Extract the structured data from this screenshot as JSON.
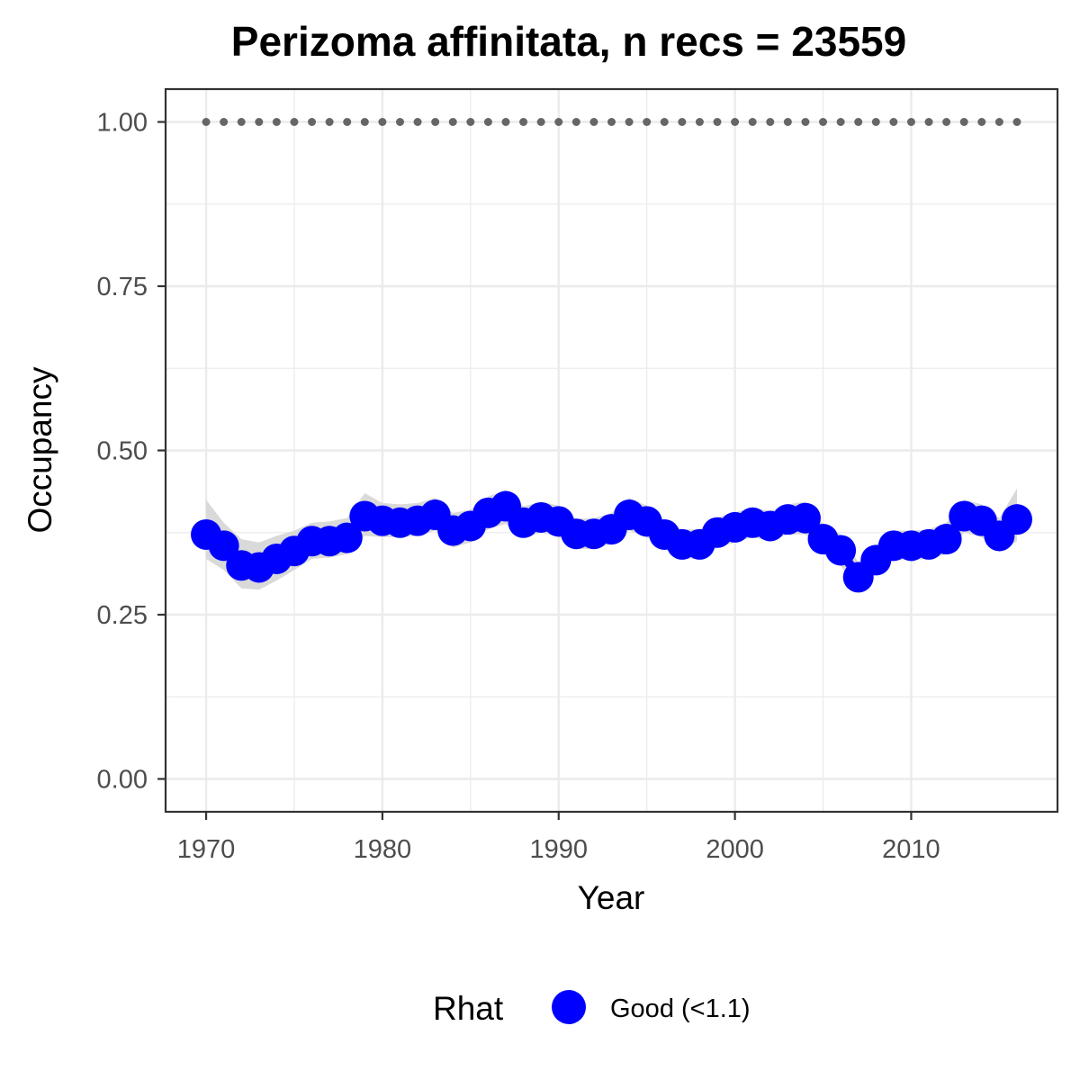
{
  "chart_data": {
    "type": "line",
    "title": "Perizoma affinitata, n recs = 23559",
    "xlabel": "Year",
    "ylabel": "Occupancy",
    "xlim": [
      1967.7,
      2018.3
    ],
    "ylim": [
      -0.05,
      1.05
    ],
    "x_ticks": [
      1970,
      1980,
      1990,
      2000,
      2010
    ],
    "x_tick_labels": [
      "1970",
      "1980",
      "1990",
      "2000",
      "2010"
    ],
    "y_ticks": [
      0,
      0.25,
      0.5,
      0.75,
      1.0
    ],
    "y_tick_labels": [
      "0.00",
      "0.25",
      "0.50",
      "0.75",
      "1.00"
    ],
    "grid": true,
    "legend": {
      "position": "bottom",
      "title": "Rhat",
      "entries": [
        {
          "label": "Good (<1.1)",
          "color": "#0000ff"
        }
      ]
    },
    "colors": {
      "points": "#0000ff",
      "ribbon": "#d9d9d9",
      "reference": "#666666",
      "grid": "#ebebeb",
      "border": "#333333"
    },
    "reference_line": {
      "y": 1.0,
      "style": "dotted"
    },
    "x": [
      1970,
      1971,
      1972,
      1973,
      1974,
      1975,
      1976,
      1977,
      1978,
      1979,
      1980,
      1981,
      1982,
      1983,
      1984,
      1985,
      1986,
      1987,
      1988,
      1989,
      1990,
      1991,
      1992,
      1993,
      1994,
      1995,
      1996,
      1997,
      1998,
      1999,
      2000,
      2001,
      2002,
      2003,
      2004,
      2005,
      2006,
      2007,
      2008,
      2009,
      2010,
      2011,
      2012,
      2013,
      2014,
      2015,
      2016
    ],
    "series": [
      {
        "name": "Good (<1.1)",
        "values": [
          0.372,
          0.355,
          0.325,
          0.322,
          0.335,
          0.347,
          0.362,
          0.362,
          0.367,
          0.4,
          0.393,
          0.39,
          0.393,
          0.402,
          0.378,
          0.385,
          0.405,
          0.415,
          0.39,
          0.398,
          0.392,
          0.373,
          0.373,
          0.38,
          0.402,
          0.392,
          0.372,
          0.357,
          0.357,
          0.375,
          0.383,
          0.39,
          0.385,
          0.395,
          0.397,
          0.365,
          0.348,
          0.307,
          0.333,
          0.355,
          0.355,
          0.357,
          0.365,
          0.4,
          0.393,
          0.37,
          0.395
        ],
        "lower": [
          0.335,
          0.318,
          0.29,
          0.288,
          0.302,
          0.318,
          0.335,
          0.337,
          0.342,
          0.37,
          0.368,
          0.368,
          0.37,
          0.378,
          0.352,
          0.36,
          0.38,
          0.388,
          0.367,
          0.375,
          0.368,
          0.35,
          0.35,
          0.358,
          0.378,
          0.368,
          0.35,
          0.335,
          0.335,
          0.352,
          0.36,
          0.368,
          0.362,
          0.372,
          0.372,
          0.342,
          0.325,
          0.285,
          0.312,
          0.333,
          0.333,
          0.335,
          0.342,
          0.375,
          0.368,
          0.345,
          0.362
        ],
        "upper": [
          0.425,
          0.39,
          0.365,
          0.36,
          0.37,
          0.378,
          0.39,
          0.392,
          0.397,
          0.435,
          0.42,
          0.418,
          0.42,
          0.428,
          0.405,
          0.41,
          0.43,
          0.44,
          0.415,
          0.422,
          0.416,
          0.396,
          0.397,
          0.405,
          0.428,
          0.416,
          0.395,
          0.38,
          0.38,
          0.398,
          0.406,
          0.413,
          0.408,
          0.418,
          0.422,
          0.388,
          0.372,
          0.33,
          0.356,
          0.378,
          0.378,
          0.38,
          0.39,
          0.425,
          0.418,
          0.397,
          0.442
        ]
      }
    ],
    "reference_series_values": [
      1,
      1,
      1,
      1,
      1,
      1,
      1,
      1,
      1,
      1,
      1,
      1,
      1,
      1,
      1,
      1,
      1,
      1,
      1,
      1,
      1,
      1,
      1,
      1,
      1,
      1,
      1,
      1,
      1,
      1,
      1,
      1,
      1,
      1,
      1,
      1,
      1,
      1,
      1,
      1,
      1,
      1,
      1,
      1,
      1,
      1,
      1
    ]
  }
}
